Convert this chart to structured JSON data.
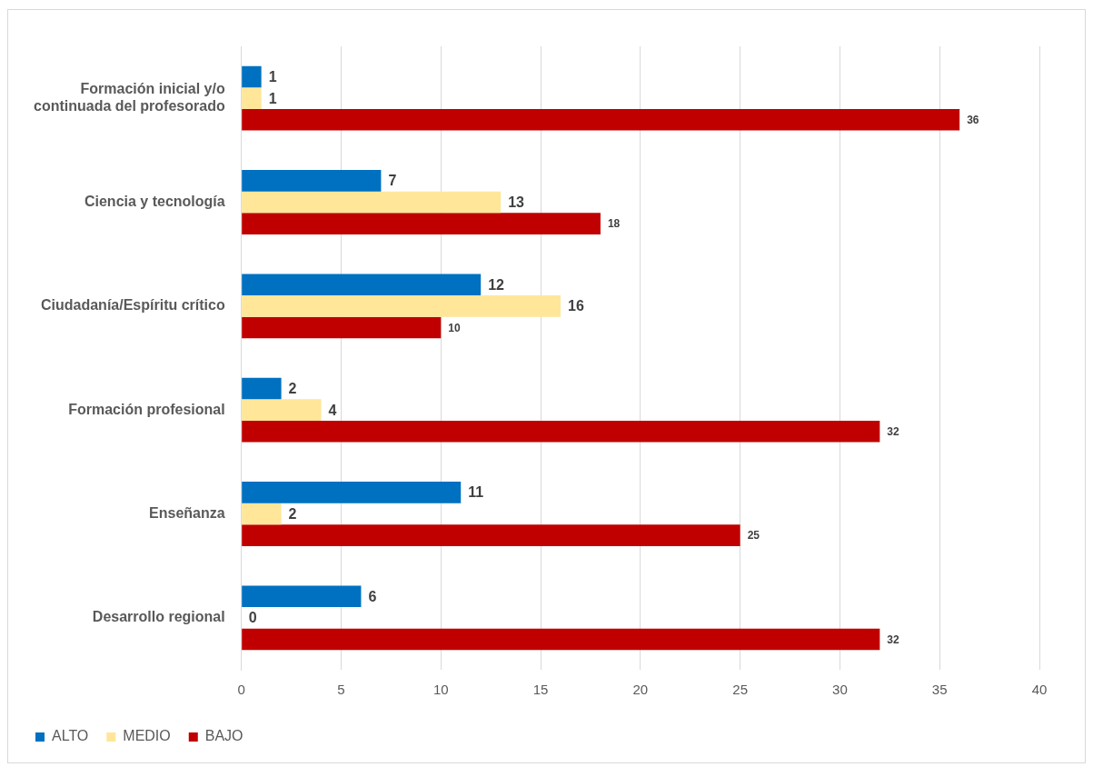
{
  "chart_data": {
    "type": "bar",
    "orientation": "horizontal",
    "categories": [
      "Formación inicial y/o continuada del profesorado",
      "Ciencia y tecnología",
      "Ciudadanía/Espíritu crítico",
      "Formación profesional",
      "Enseñanza",
      "Desarrollo regional"
    ],
    "series": [
      {
        "name": "ALTO",
        "color": "#0070c0",
        "values": [
          1,
          7,
          12,
          2,
          11,
          6
        ]
      },
      {
        "name": "MEDIO",
        "color": "#ffe699",
        "values": [
          1,
          13,
          16,
          4,
          2,
          0
        ]
      },
      {
        "name": "BAJO",
        "color": "#c00000",
        "values": [
          36,
          18,
          10,
          32,
          25,
          32
        ]
      }
    ],
    "xlim": [
      0,
      40
    ],
    "xticks": [
      0,
      5,
      10,
      15,
      20,
      25,
      30,
      35,
      40
    ],
    "grid": "x",
    "legend": "bottom left",
    "data_labels": true
  }
}
